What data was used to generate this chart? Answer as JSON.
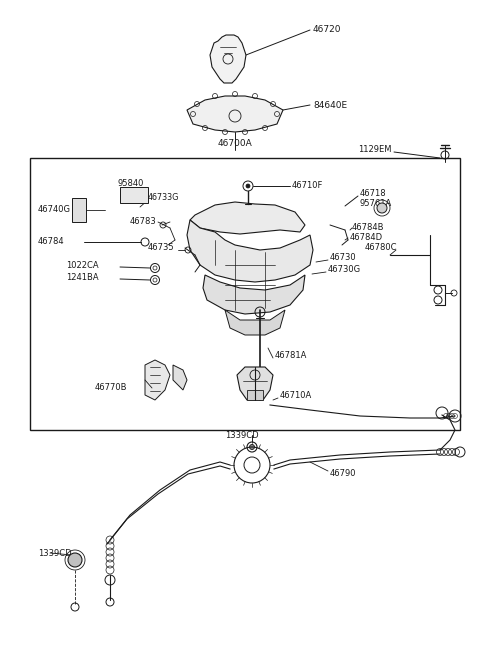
{
  "bg_color": "#ffffff",
  "line_color": "#1a1a1a",
  "figsize": [
    4.8,
    6.56
  ],
  "dpi": 100,
  "xlim": [
    0,
    480
  ],
  "ylim": [
    0,
    656
  ]
}
